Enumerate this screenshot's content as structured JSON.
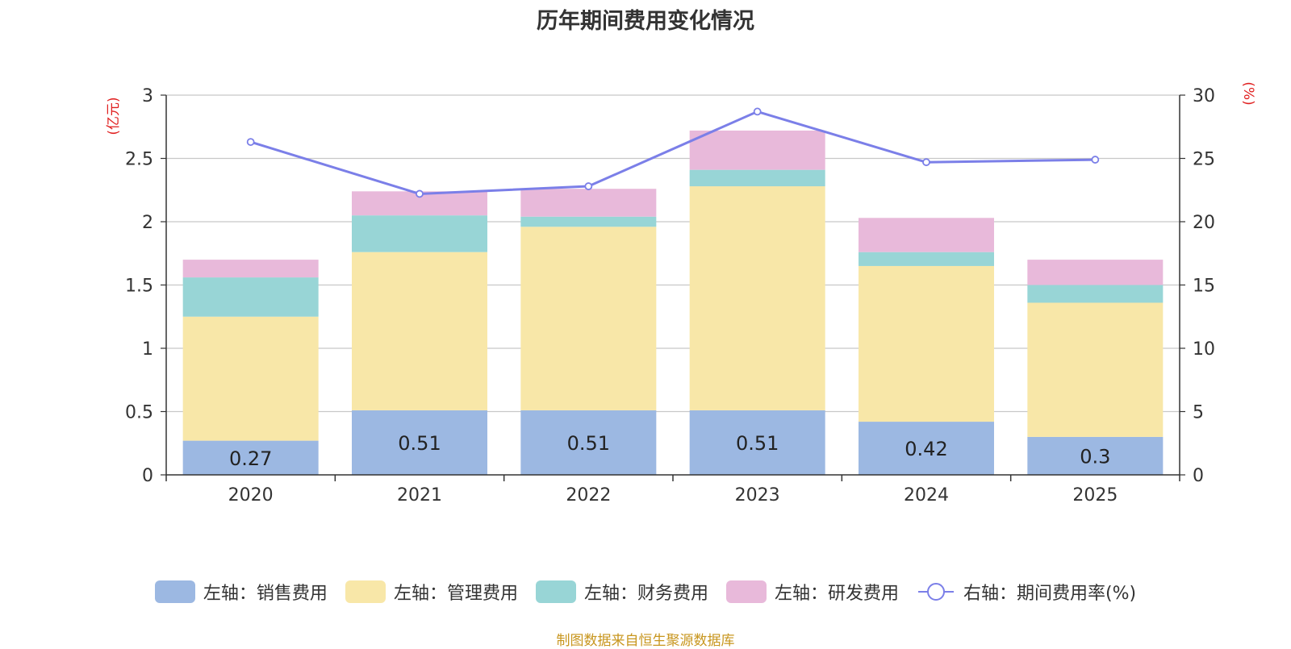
{
  "chart_data": {
    "type": "bar+line",
    "title": "历年期间费用变化情况",
    "categories": [
      "2020",
      "2021",
      "2022",
      "2023",
      "2024",
      "2025"
    ],
    "left_axis": {
      "label": "(亿元)",
      "min": 0,
      "max": 3,
      "ticks": [
        "0",
        "0.5",
        "1",
        "1.5",
        "2",
        "2.5",
        "3"
      ]
    },
    "right_axis": {
      "label": "(%)",
      "min": 0,
      "max": 30,
      "ticks": [
        "0",
        "5",
        "10",
        "15",
        "20",
        "25",
        "30"
      ]
    },
    "bar_series": [
      {
        "name": "左轴：销售费用",
        "color": "#9cb8e2",
        "values": [
          0.27,
          0.51,
          0.51,
          0.51,
          0.42,
          0.3
        ],
        "labels": [
          "0.27",
          "0.51",
          "0.51",
          "0.51",
          "0.42",
          "0.3"
        ]
      },
      {
        "name": "左轴：管理费用",
        "color": "#f8e7a8",
        "values": [
          0.98,
          1.25,
          1.45,
          1.77,
          1.23,
          1.06
        ]
      },
      {
        "name": "左轴：财务费用",
        "color": "#98d5d6",
        "values": [
          0.31,
          0.29,
          0.08,
          0.13,
          0.11,
          0.14
        ]
      },
      {
        "name": "左轴：研发费用",
        "color": "#e8b9da",
        "values": [
          0.14,
          0.19,
          0.22,
          0.31,
          0.27,
          0.2
        ]
      }
    ],
    "line_series": {
      "name": "右轴：期间费用率(%)",
      "color": "#7b7fe8",
      "values": [
        26.3,
        22.2,
        22.8,
        28.7,
        24.7,
        24.9
      ]
    },
    "grid": true,
    "legend_position": "bottom"
  },
  "source_note": "制图数据来自恒生聚源数据库"
}
